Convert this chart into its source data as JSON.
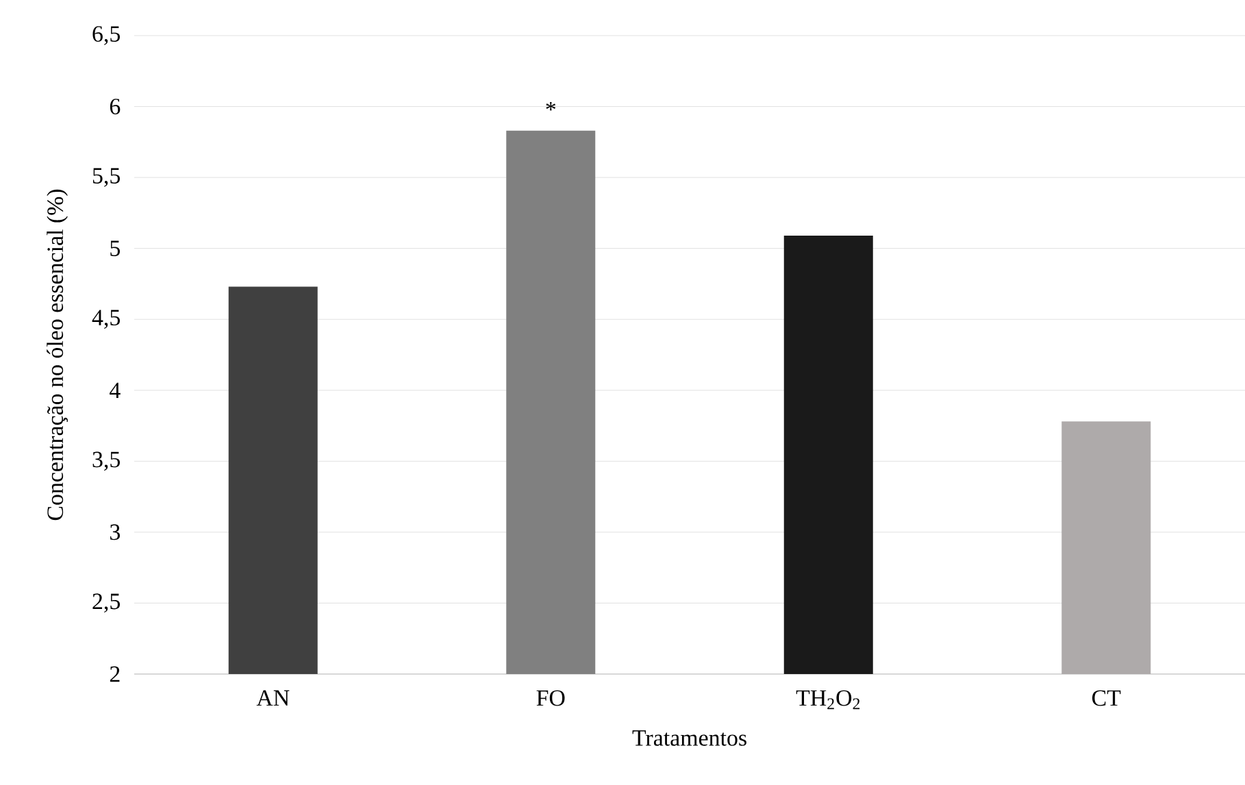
{
  "chart_data": {
    "type": "bar",
    "xlabel": "Tratamentos",
    "ylabel": "Concentração no óleo essencial (%)",
    "categories": [
      "AN",
      "FO",
      "TH$_{2}$O$_{2}$",
      "CT"
    ],
    "values": [
      4.73,
      5.83,
      5.09,
      3.78
    ],
    "colors": [
      "#404040",
      "#808080",
      "#1a1a1a",
      "#aeaaaa"
    ],
    "ylim": [
      2,
      6.5
    ],
    "yticks": [
      2,
      {
        "value": 2.5,
        "label": "2,5"
      },
      3,
      {
        "value": 3.5,
        "label": "3,5"
      },
      4,
      {
        "value": 4.5,
        "label": "4,5"
      },
      5,
      {
        "value": 5.5,
        "label": "5,5"
      },
      6,
      {
        "value": 6.5,
        "label": "6,5"
      }
    ],
    "grid": "y",
    "annotations": [
      {
        "text": "*",
        "x": "FO",
        "y": 5.83
      }
    ]
  }
}
